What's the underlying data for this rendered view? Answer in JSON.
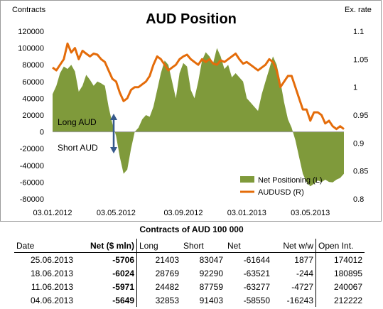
{
  "chart_data": {
    "type": "area+line",
    "title": "AUD Position",
    "ylabel_left": "Contracts",
    "ylabel_right": "Ex. rate",
    "ylim_left": [
      -80000,
      120000
    ],
    "ylim_right": [
      0.8,
      1.1
    ],
    "yticks_left": [
      "120000",
      "100000",
      "80000",
      "60000",
      "40000",
      "20000",
      "0",
      "-20000",
      "-40000",
      "-60000",
      "-80000"
    ],
    "yticks_right": [
      "1.1",
      "1.05",
      "1",
      "0.95",
      "0.9",
      "0.85",
      "0.8"
    ],
    "xticks": [
      "03.01.2012",
      "03.05.2012",
      "03.09.2012",
      "03.01.2013",
      "03.05.2013"
    ],
    "x_range_weeks": [
      0,
      78
    ],
    "xtick_weeks": [
      0,
      17,
      35,
      52,
      69
    ],
    "series": [
      {
        "name": "Net Positioning (L)",
        "kind": "area",
        "axis": "left",
        "color": "#7f9a3b",
        "weeks": [
          0,
          1,
          2,
          3,
          4,
          5,
          6,
          7,
          8,
          9,
          10,
          11,
          12,
          13,
          14,
          15,
          16,
          17,
          18,
          19,
          20,
          21,
          22,
          23,
          24,
          25,
          26,
          27,
          28,
          29,
          30,
          31,
          32,
          33,
          34,
          35,
          36,
          37,
          38,
          39,
          40,
          41,
          42,
          43,
          44,
          45,
          46,
          47,
          48,
          49,
          50,
          51,
          52,
          53,
          54,
          55,
          56,
          57,
          58,
          59,
          60,
          61,
          62,
          63,
          64,
          65,
          66,
          67,
          68,
          69,
          70,
          71,
          72,
          73,
          74,
          75,
          76,
          77,
          78
        ],
        "values": [
          45000,
          55000,
          70000,
          78000,
          75000,
          80000,
          72000,
          48000,
          55000,
          68000,
          62000,
          55000,
          60000,
          58000,
          55000,
          30000,
          10000,
          -5000,
          -30000,
          -50000,
          -45000,
          -20000,
          0,
          5000,
          15000,
          20000,
          18000,
          30000,
          50000,
          70000,
          85000,
          80000,
          60000,
          40000,
          70000,
          82000,
          78000,
          50000,
          40000,
          60000,
          85000,
          95000,
          90000,
          82000,
          100000,
          90000,
          75000,
          80000,
          65000,
          70000,
          65000,
          60000,
          40000,
          35000,
          30000,
          25000,
          45000,
          60000,
          75000,
          90000,
          80000,
          60000,
          35000,
          15000,
          5000,
          -10000,
          -30000,
          -50000,
          -60000,
          -65000,
          -62000,
          -58000,
          -60000,
          -57060,
          -59710,
          -60240,
          -57060,
          -55000,
          -50000
        ]
      },
      {
        "name": "AUDUSD (R)",
        "kind": "line",
        "axis": "right",
        "color": "#e46c0a",
        "weeks": [
          0,
          1,
          2,
          3,
          4,
          5,
          6,
          7,
          8,
          9,
          10,
          11,
          12,
          13,
          14,
          15,
          16,
          17,
          18,
          19,
          20,
          21,
          22,
          23,
          24,
          25,
          26,
          27,
          28,
          29,
          30,
          31,
          32,
          33,
          34,
          35,
          36,
          37,
          38,
          39,
          40,
          41,
          42,
          43,
          44,
          45,
          46,
          47,
          48,
          49,
          50,
          51,
          52,
          53,
          54,
          55,
          56,
          57,
          58,
          59,
          60,
          61,
          62,
          63,
          64,
          65,
          66,
          67,
          68,
          69,
          70,
          71,
          72,
          73,
          74,
          75,
          76,
          77,
          78
        ],
        "values": [
          1.035,
          1.03,
          1.04,
          1.05,
          1.078,
          1.062,
          1.07,
          1.05,
          1.065,
          1.06,
          1.055,
          1.06,
          1.058,
          1.05,
          1.045,
          1.03,
          1.015,
          1.01,
          0.99,
          0.975,
          0.98,
          0.995,
          1.0,
          1.0,
          1.005,
          1.01,
          1.02,
          1.04,
          1.055,
          1.05,
          1.04,
          1.03,
          1.035,
          1.04,
          1.05,
          1.055,
          1.058,
          1.05,
          1.045,
          1.04,
          1.05,
          1.045,
          1.05,
          1.042,
          1.04,
          1.048,
          1.045,
          1.05,
          1.055,
          1.06,
          1.05,
          1.042,
          1.045,
          1.04,
          1.035,
          1.03,
          1.035,
          1.04,
          1.05,
          1.045,
          1.03,
          1.0,
          1.01,
          1.02,
          1.02,
          1.0,
          0.98,
          0.96,
          0.96,
          0.94,
          0.955,
          0.955,
          0.95,
          0.935,
          0.94,
          0.93,
          0.925,
          0.93,
          0.925
        ]
      }
    ],
    "legend_position": "bottom-right",
    "annotations": [
      {
        "text": "Long AUD"
      },
      {
        "text": "Short AUD"
      }
    ],
    "grid": false
  },
  "table": {
    "title": "Contracts of AUD 100 000",
    "headers": [
      "Date",
      "Net ($ mln)",
      "Long",
      "Short",
      "Net",
      "Net w/w",
      "Open Int."
    ],
    "rows": [
      [
        "25.06.2013",
        "-5706",
        "21403",
        "83047",
        "-61644",
        "1877",
        "174012"
      ],
      [
        "18.06.2013",
        "-6024",
        "28769",
        "92290",
        "-63521",
        "-244",
        "180895"
      ],
      [
        "11.06.2013",
        "-5971",
        "24482",
        "87759",
        "-63277",
        "-4727",
        "240067"
      ],
      [
        "04.06.2013",
        "-5649",
        "32853",
        "91403",
        "-58550",
        "-16243",
        "212222"
      ]
    ]
  }
}
